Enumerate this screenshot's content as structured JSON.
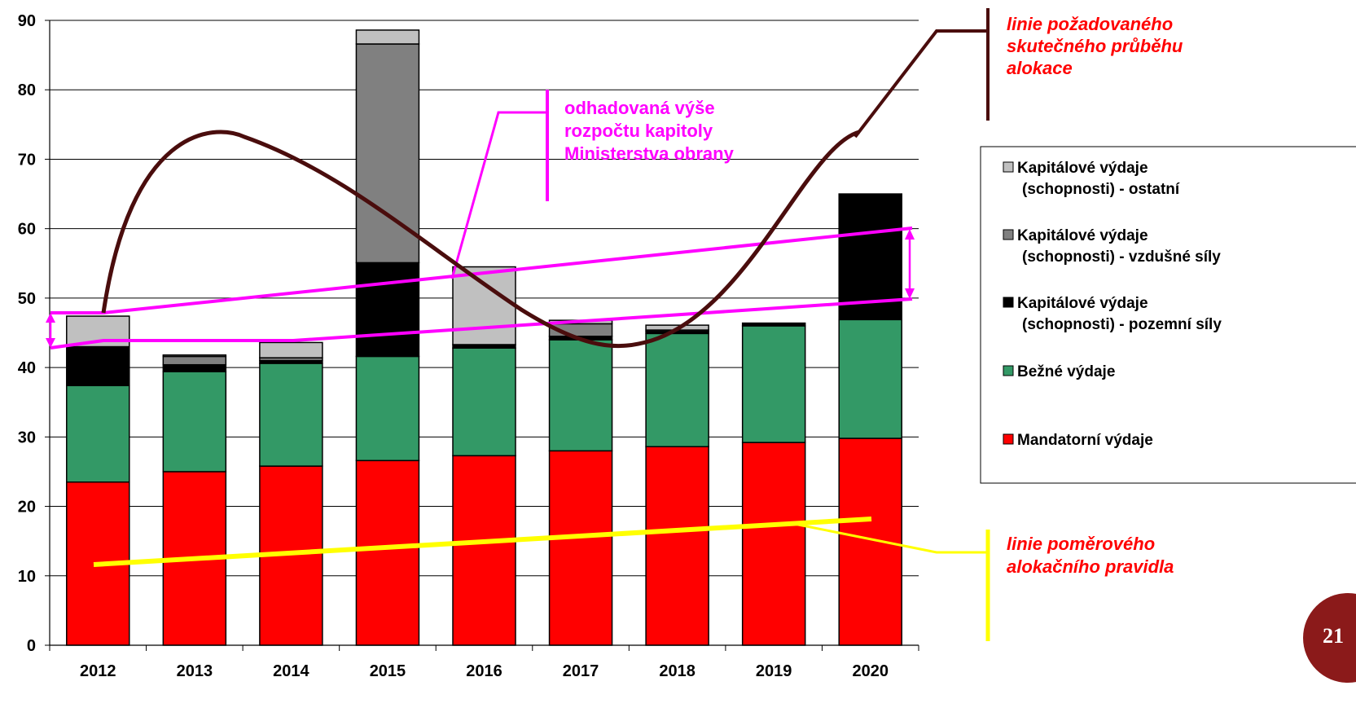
{
  "chart_data": {
    "type": "bar",
    "stacked": true,
    "categories": [
      "2012",
      "2013",
      "2014",
      "2015",
      "2016",
      "2017",
      "2018",
      "2019",
      "2020"
    ],
    "ylim": [
      0,
      90
    ],
    "yticks": [
      0,
      10,
      20,
      30,
      40,
      50,
      60,
      70,
      80,
      90
    ],
    "grid": true,
    "legend_position": "right",
    "series": [
      {
        "name": "Mandatorní výdaje",
        "color": "#ff0000",
        "values": [
          23.5,
          25.0,
          25.8,
          26.6,
          27.3,
          28.0,
          28.6,
          29.2,
          29.8
        ]
      },
      {
        "name": "Bežné výdaje",
        "color": "#339966",
        "values": [
          13.9,
          14.4,
          14.8,
          15.0,
          15.5,
          16.0,
          16.3,
          16.8,
          17.1
        ]
      },
      {
        "name": "Kapitálové výdaje (schopnosti) - pozemní síly",
        "color": "#000000",
        "values": [
          5.6,
          1.0,
          0.4,
          13.5,
          0.5,
          0.5,
          0.3,
          0.4,
          18.1
        ]
      },
      {
        "name": "Kapitálové výdaje (schopnosti) - vzdušné síly",
        "color": "#808080",
        "values": [
          0.0,
          1.2,
          0.4,
          31.5,
          0.0,
          1.8,
          0.2,
          0.0,
          0.0
        ]
      },
      {
        "name": "Kapitálové výdaje (schopnosti) - ostatní",
        "color": "#c0c0c0",
        "values": [
          4.4,
          0.2,
          2.2,
          2.0,
          11.2,
          0.5,
          0.7,
          0.0,
          0.0
        ]
      }
    ],
    "legend_labels": [
      [
        "Kapitálové výdaje",
        "(schopnosti) - ostatní"
      ],
      [
        "Kapitálové výdaje",
        "(schopnosti) - vzdušné síly"
      ],
      [
        "Kapitálové výdaje",
        "(schopnosti) - pozemní síly"
      ],
      [
        "Bežné výdaje"
      ],
      [
        "Mandatorní výdaje"
      ]
    ],
    "annotations": {
      "required_allocation": {
        "lines": [
          "linie požadovaného",
          "skutečného průběhu",
          "alokace"
        ],
        "color": "#ff0000",
        "line_color": "#4a0d0d"
      },
      "budget_estimate": {
        "lines": [
          "odhadovaná výše",
          "rozpočtu kapitoly",
          "Ministerstva obrany"
        ],
        "color": "#ff00ff"
      },
      "ratio_rule": {
        "lines": [
          "linie poměrového",
          "alokačního pravidla"
        ],
        "color": "#ff0000",
        "line_color": "#ffff00"
      }
    }
  },
  "page_number": "21",
  "badge_color": "#8b1a1a"
}
